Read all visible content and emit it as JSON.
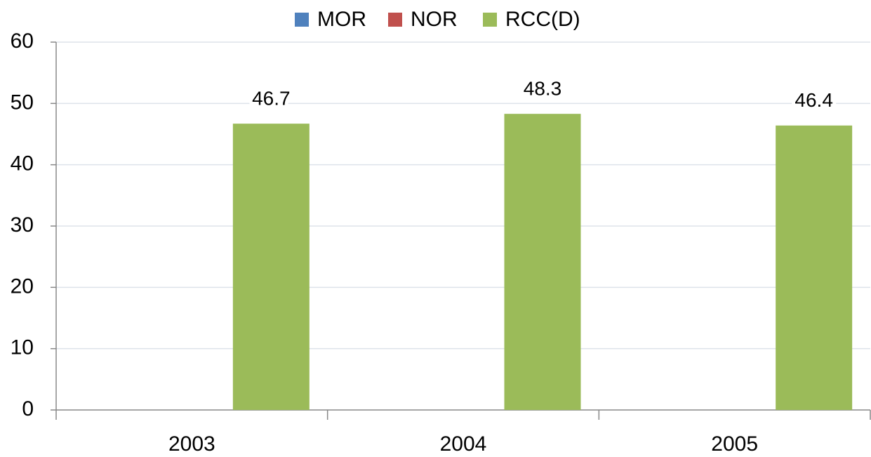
{
  "chart_data": {
    "type": "bar",
    "categories": [
      "2003",
      "2004",
      "2005"
    ],
    "series": [
      {
        "name": "MOR",
        "color": "#4f81bd",
        "values": [
          null,
          null,
          null
        ]
      },
      {
        "name": "NOR",
        "color": "#c0504d",
        "values": [
          null,
          null,
          null
        ]
      },
      {
        "name": "RCC(D)",
        "color": "#9bbb59",
        "values": [
          46.7,
          48.3,
          46.4
        ]
      }
    ],
    "ylim": [
      0,
      60
    ],
    "yticks": [
      0,
      10,
      20,
      30,
      40,
      50,
      60
    ],
    "grid": true,
    "legend": "top",
    "data_labels": true
  }
}
